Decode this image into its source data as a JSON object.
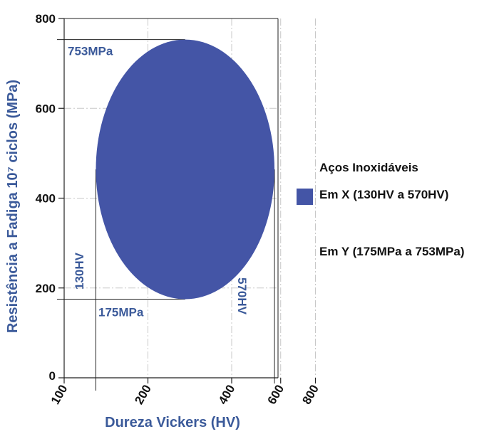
{
  "chart_data": {
    "type": "area",
    "xlabel": "Dureza Vickers (HV)",
    "ylabel": "Resistência a Fadiga 10⁷ ciclos (MPa)",
    "x_ticks": [
      "100",
      "200",
      "400",
      "600",
      "800"
    ],
    "y_ticks": [
      "0",
      "200",
      "400",
      "600",
      "800"
    ],
    "x_scale": "log",
    "xlim": [
      100,
      800
    ],
    "ylim": [
      0,
      800
    ],
    "grid": true,
    "legend_position": "right",
    "legend_title": "Aços Inoxidáveis",
    "series": [
      {
        "name": "Em X (130HV a 570HV)",
        "shape": "ellipse",
        "x_range": [
          130,
          570
        ],
        "y_range": [
          175,
          753
        ],
        "color": "#4455a6"
      }
    ],
    "legend_extra": "Em Y (175MPa a 753MPa)",
    "annotations": {
      "y_max": "753MPa",
      "y_min": "175MPa",
      "x_min": "130HV",
      "x_max": "570HV"
    }
  }
}
